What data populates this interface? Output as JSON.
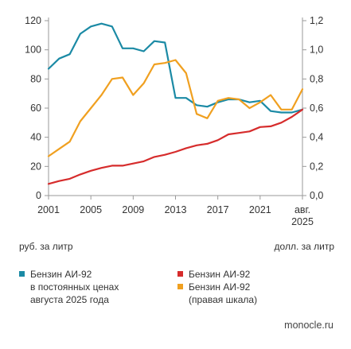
{
  "chart_data": {
    "type": "line",
    "x": [
      2001,
      2002,
      2003,
      2004,
      2005,
      2006,
      2007,
      2008,
      2009,
      2010,
      2011,
      2012,
      2013,
      2014,
      2015,
      2016,
      2017,
      2018,
      2019,
      2020,
      2021,
      2022,
      2023,
      2024,
      2025
    ],
    "x_tick_labels": [
      "2001",
      "2005",
      "2009",
      "2013",
      "2017",
      "2021",
      "авг.\n2025"
    ],
    "x_tick_values": [
      2001,
      2005,
      2009,
      2013,
      2017,
      2021,
      2025
    ],
    "y_left": {
      "label": "руб. за литр",
      "ticks": [
        "0",
        "20",
        "40",
        "60",
        "80",
        "100",
        "120"
      ],
      "lim": [
        0,
        120
      ]
    },
    "y_right": {
      "label": "долл. за литр",
      "ticks": [
        "0,0",
        "0,2",
        "0,4",
        "0,6",
        "0,8",
        "1,0",
        "1,2"
      ],
      "lim": [
        0,
        1.2
      ]
    },
    "series": [
      {
        "name": "Бензин АИ-92\nв постоянных ценах\nавгуста 2025 года",
        "axis": "left",
        "color": "#1b8aa5",
        "values": [
          87,
          94,
          97,
          111,
          116,
          118,
          116,
          101,
          101,
          99,
          106,
          105,
          67,
          67,
          62,
          61,
          64,
          66,
          66,
          64,
          65,
          58,
          57,
          57,
          59
        ]
      },
      {
        "name": "Бензин АИ-92",
        "axis": "left",
        "color": "#d62c2c",
        "values": [
          8,
          10,
          11.5,
          14.5,
          17,
          19,
          20.5,
          20.5,
          22,
          23.5,
          26.5,
          28,
          30,
          32.5,
          34.5,
          35.5,
          38,
          42,
          43,
          44,
          47,
          47.5,
          50,
          54,
          59
        ]
      },
      {
        "name": "Бензин АИ-92\n(правая шкала)",
        "axis": "right",
        "color": "#f0a020",
        "values": [
          0.27,
          0.32,
          0.37,
          0.51,
          0.6,
          0.69,
          0.8,
          0.81,
          0.69,
          0.77,
          0.9,
          0.91,
          0.93,
          0.84,
          0.56,
          0.53,
          0.65,
          0.67,
          0.66,
          0.6,
          0.64,
          0.69,
          0.59,
          0.59,
          0.73
        ]
      }
    ],
    "grid": false,
    "legend": "bottom"
  },
  "labels": {
    "left_unit": "руб. за литр",
    "right_unit": "долл. за литр",
    "legend_1": "Бензин АИ-92\nв постоянных ценах\nавгуста 2025 года",
    "legend_2": "Бензин АИ-92",
    "legend_3": "Бензин АИ-92\n(правая шкала)",
    "source": "monocle.ru"
  },
  "colors": {
    "teal": "#1b8aa5",
    "red": "#d62c2c",
    "orange": "#f0a020",
    "axis": "#999999"
  }
}
